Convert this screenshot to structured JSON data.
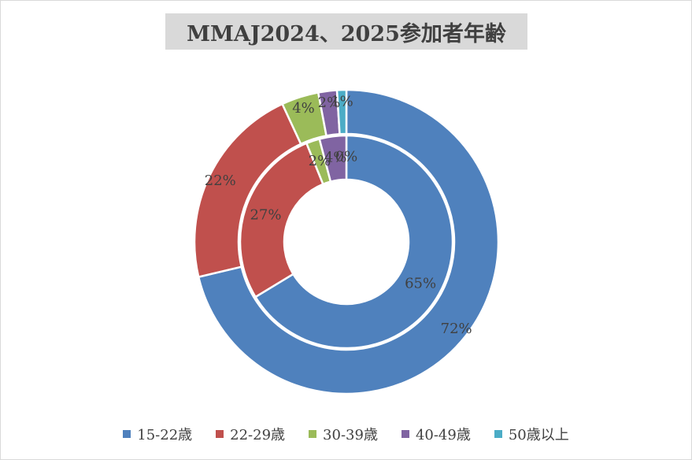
{
  "chart_data": {
    "type": "pie",
    "subtype": "doughnut",
    "title": "MMAJ2024、2025参加者年齢",
    "categories": [
      "15-22歳",
      "22-29歳",
      "30-39歳",
      "40-49歳",
      "50歳以上"
    ],
    "colors": [
      "#4f81bd",
      "#c0504d",
      "#9bbb59",
      "#8064a2",
      "#4bacc6"
    ],
    "series": [
      {
        "ring": "outer",
        "values": [
          72,
          22,
          4,
          2,
          1
        ],
        "labels": [
          "72%",
          "22%",
          "4%",
          "2%",
          "1%"
        ]
      },
      {
        "ring": "inner",
        "values": [
          65,
          27,
          2,
          4,
          0
        ],
        "labels": [
          "65%",
          "27%",
          "2%",
          "4%",
          "0%"
        ]
      }
    ],
    "legend_position": "bottom"
  }
}
